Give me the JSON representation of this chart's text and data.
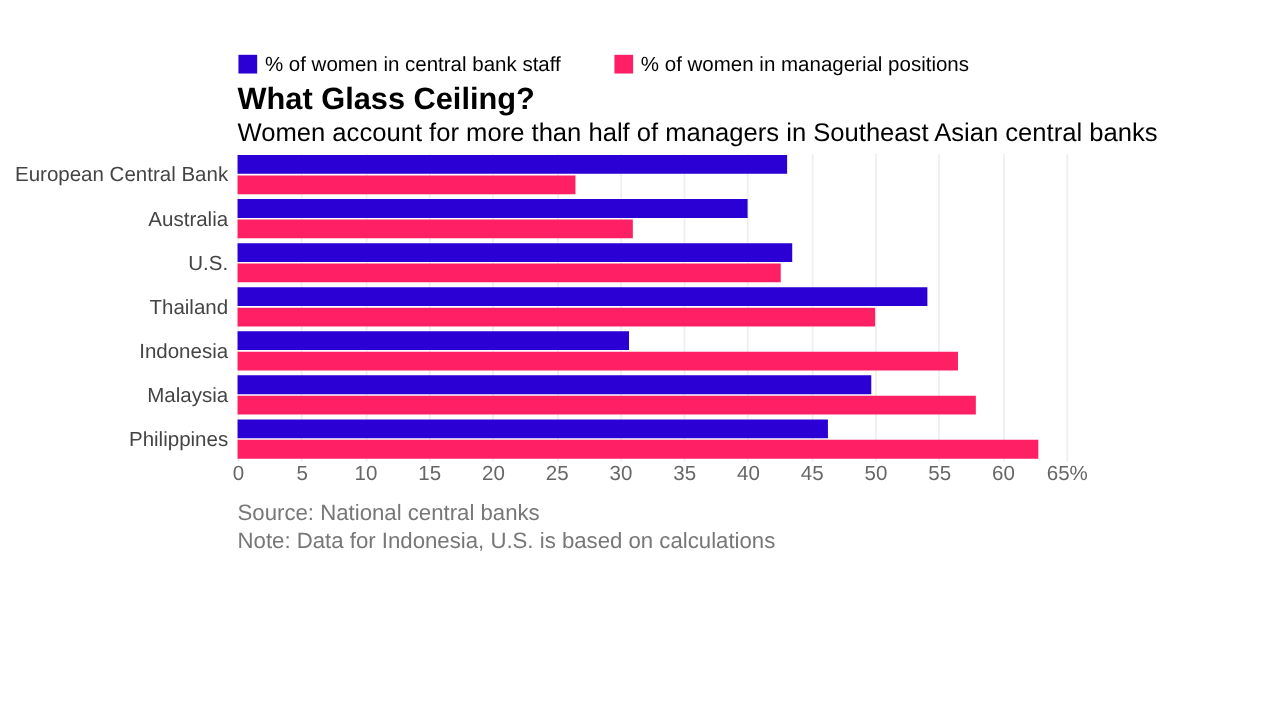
{
  "chart_data": {
    "type": "bar",
    "orientation": "horizontal",
    "title": "What Glass Ceiling?",
    "subtitle": "Women account for more than half of managers in Southeast Asian central banks",
    "categories": [
      "European Central Bank",
      "Australia",
      "U.S.",
      "Thailand",
      "Indonesia",
      "Malaysia",
      "Philippines"
    ],
    "series": [
      {
        "name": "% of women in central bank staff",
        "color": "#2a00d4",
        "values": [
          43.1,
          40.0,
          43.5,
          54.1,
          30.7,
          49.7,
          46.3
        ]
      },
      {
        "name": "% of women in managerial positions",
        "color": "#ff1f64",
        "values": [
          26.5,
          31.0,
          42.6,
          50.0,
          56.5,
          57.9,
          62.8
        ]
      }
    ],
    "xlim": [
      0,
      65
    ],
    "xticks": [
      0,
      5,
      10,
      15,
      20,
      25,
      30,
      35,
      40,
      45,
      50,
      55,
      60,
      {
        "value": 65,
        "label": "65%"
      }
    ],
    "grid": "x",
    "legend": "top left",
    "annotations": [
      "Source: National central banks",
      "Note: Data for Indonesia, U.S. is based on calculations"
    ]
  }
}
